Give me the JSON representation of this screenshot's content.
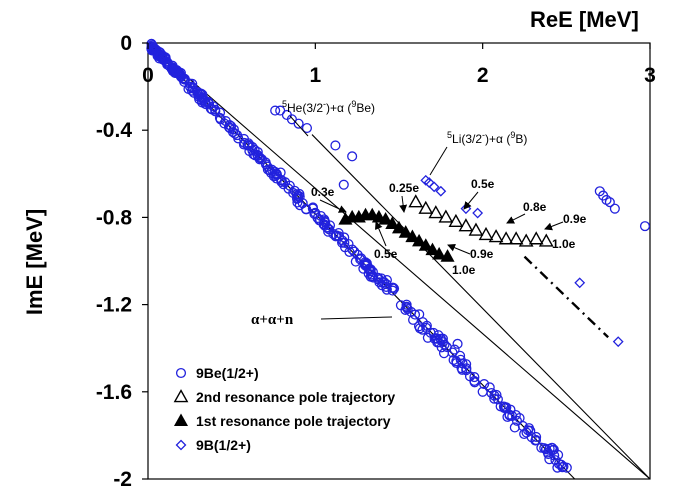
{
  "chart_data": {
    "type": "scatter",
    "xlabel": "ReE [MeV]",
    "ylabel": "ImE [MeV]",
    "xlim": [
      0,
      3
    ],
    "ylim": [
      -2,
      0
    ],
    "x_ticks": [
      {
        "value": 0,
        "label": "0"
      },
      {
        "value": 1,
        "label": "1"
      },
      {
        "value": 2,
        "label": "2"
      },
      {
        "value": 3,
        "label": "3"
      }
    ],
    "y_ticks": [
      {
        "value": 0,
        "label": "0"
      },
      {
        "value": -0.4,
        "label": "-0.4"
      },
      {
        "value": -0.8,
        "label": "-0.8"
      },
      {
        "value": -1.2,
        "label": "-1.2"
      },
      {
        "value": -1.6,
        "label": "-1.6"
      },
      {
        "value": -2,
        "label": "-2"
      }
    ],
    "grid": false,
    "legend_position": "bottom-left",
    "reference_lines": [
      {
        "x": [
          0,
          2.55
        ],
        "y": [
          0,
          -2.0
        ],
        "style": "solid"
      },
      {
        "x": [
          0,
          3.0
        ],
        "y": [
          0,
          -2.0
        ],
        "style": "solid"
      },
      {
        "x": [
          0.98,
          3.0
        ],
        "y": [
          -0.42,
          -2.0
        ],
        "style": "solid"
      },
      {
        "x": [
          2.25,
          2.75
        ],
        "y": [
          -0.98,
          -1.35
        ],
        "style": "dashdot"
      }
    ],
    "series": [
      {
        "name": "9Be(1/2+)",
        "marker": "open-circle",
        "color": "#2222dd",
        "band": {
          "x_start": 0.02,
          "x_end": 2.55,
          "slope": -0.785,
          "count": 360,
          "x_bias": 1.7,
          "spread": 0.045
        },
        "points": [
          {
            "x": 0.76,
            "y": -0.31
          },
          {
            "x": 0.79,
            "y": -0.31
          },
          {
            "x": 0.83,
            "y": -0.33
          },
          {
            "x": 0.86,
            "y": -0.35
          },
          {
            "x": 0.9,
            "y": -0.37
          },
          {
            "x": 0.95,
            "y": -0.39
          },
          {
            "x": 1.12,
            "y": -0.47
          },
          {
            "x": 1.22,
            "y": -0.52
          },
          {
            "x": 1.17,
            "y": -0.65
          },
          {
            "x": 2.7,
            "y": -0.68
          },
          {
            "x": 2.72,
            "y": -0.7
          },
          {
            "x": 2.74,
            "y": -0.72
          },
          {
            "x": 2.76,
            "y": -0.73
          },
          {
            "x": 2.79,
            "y": -0.76
          },
          {
            "x": 2.97,
            "y": -0.84
          },
          {
            "x": 1.82,
            "y": -1.42
          },
          {
            "x": 1.85,
            "y": -1.38
          },
          {
            "x": 1.95,
            "y": -1.55
          },
          {
            "x": 2.0,
            "y": -1.6
          },
          {
            "x": 1.88,
            "y": -1.47
          }
        ]
      },
      {
        "name": "2nd resonance pole trajectory",
        "marker": "open-triangle",
        "color": "#000000",
        "points": [
          {
            "x": 1.6,
            "y": -0.73
          },
          {
            "x": 1.66,
            "y": -0.76
          },
          {
            "x": 1.72,
            "y": -0.78
          },
          {
            "x": 1.78,
            "y": -0.8
          },
          {
            "x": 1.84,
            "y": -0.82
          },
          {
            "x": 1.9,
            "y": -0.84
          },
          {
            "x": 1.96,
            "y": -0.86
          },
          {
            "x": 2.02,
            "y": -0.88
          },
          {
            "x": 2.08,
            "y": -0.89
          },
          {
            "x": 2.14,
            "y": -0.9
          },
          {
            "x": 2.2,
            "y": -0.9
          },
          {
            "x": 2.26,
            "y": -0.91
          },
          {
            "x": 2.32,
            "y": -0.9
          },
          {
            "x": 2.38,
            "y": -0.91
          }
        ]
      },
      {
        "name": "1st resonance pole trajectory",
        "marker": "filled-triangle",
        "color": "#000000",
        "points": [
          {
            "x": 1.18,
            "y": -0.81
          },
          {
            "x": 1.22,
            "y": -0.8
          },
          {
            "x": 1.26,
            "y": -0.8
          },
          {
            "x": 1.3,
            "y": -0.79
          },
          {
            "x": 1.34,
            "y": -0.79
          },
          {
            "x": 1.38,
            "y": -0.8
          },
          {
            "x": 1.42,
            "y": -0.81
          },
          {
            "x": 1.46,
            "y": -0.83
          },
          {
            "x": 1.5,
            "y": -0.85
          },
          {
            "x": 1.54,
            "y": -0.87
          },
          {
            "x": 1.58,
            "y": -0.89
          },
          {
            "x": 1.62,
            "y": -0.91
          },
          {
            "x": 1.66,
            "y": -0.93
          },
          {
            "x": 1.7,
            "y": -0.95
          },
          {
            "x": 1.74,
            "y": -0.97
          },
          {
            "x": 1.79,
            "y": -0.98
          }
        ]
      },
      {
        "name": "9B(1/2+)",
        "marker": "open-diamond",
        "color": "#2222dd",
        "points": [
          {
            "x": 1.66,
            "y": -0.63
          },
          {
            "x": 1.68,
            "y": -0.64
          },
          {
            "x": 1.71,
            "y": -0.66
          },
          {
            "x": 1.75,
            "y": -0.68
          },
          {
            "x": 1.9,
            "y": -0.76
          },
          {
            "x": 1.97,
            "y": -0.78
          },
          {
            "x": 2.58,
            "y": -1.1
          },
          {
            "x": 2.81,
            "y": -1.37
          }
        ]
      }
    ],
    "annotations": {
      "he5_pre": "5",
      "he5_main": "He(3/2",
      "he5_sup": "-",
      "he5_mid": ")+α  (",
      "he5_mass": "9",
      "he5_tail": "Be)",
      "li5_pre": "5",
      "li5_main": "Li(3/2",
      "li5_sup": "-",
      "li5_mid": ")+α (",
      "li5_mass": "9",
      "li5_tail": "B)",
      "l_03e": "0.3e",
      "l_05e_a": "0.5e",
      "l_09e_a": "0.9e",
      "l_10e_a": "1.0e",
      "l_025e": "0.25e",
      "l_05e_b": "0.5e",
      "l_08e": "0.8e",
      "l_09e_b": "0.9e",
      "l_10e_b": "1.0e",
      "aan": "α+α+n"
    }
  }
}
